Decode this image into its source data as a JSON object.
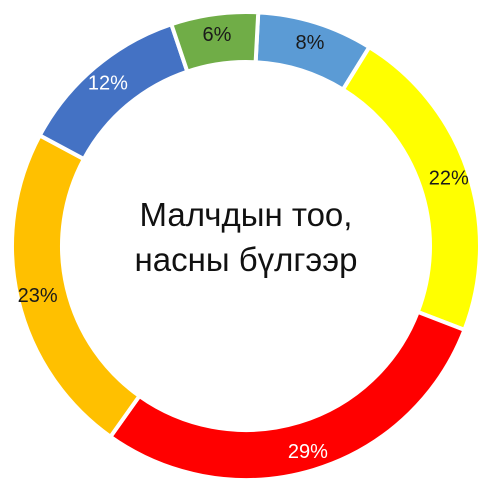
{
  "chart_data": {
    "type": "pie",
    "title_lines": [
      "Малчдын тоо,",
      "насны бүлгээр"
    ],
    "slices": [
      {
        "value": 8,
        "label": "8%",
        "color": "#5b9bd5",
        "label_color": "#1a1a1a"
      },
      {
        "value": 22,
        "label": "22%",
        "color": "#ffff00",
        "label_color": "#1a1a1a"
      },
      {
        "value": 29,
        "label": "29%",
        "color": "#ff0000",
        "label_color": "#ffffff"
      },
      {
        "value": 23,
        "label": "23%",
        "color": "#ffc000",
        "label_color": "#1a1a1a"
      },
      {
        "value": 12,
        "label": "12%",
        "color": "#4472c4",
        "label_color": "#ffffff"
      },
      {
        "value": 6,
        "label": "6%",
        "color": "#70ad47",
        "label_color": "#1a1a1a"
      }
    ]
  }
}
